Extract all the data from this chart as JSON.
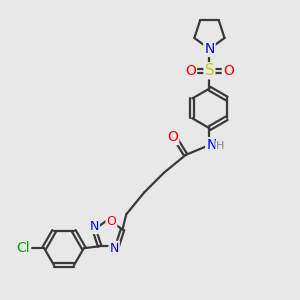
{
  "background_color": "#e8e8e8",
  "bond_color": "#3a3a3a",
  "atoms": {
    "Cl": {
      "color": "#00aa00"
    },
    "N": {
      "color": "#0000ff"
    },
    "O": {
      "color": "#ff0000"
    },
    "S": {
      "color": "#cccc00"
    },
    "H": {
      "color": "#888888"
    }
  },
  "linewidth": 1.6,
  "figsize": [
    3.0,
    3.0
  ],
  "dpi": 100
}
